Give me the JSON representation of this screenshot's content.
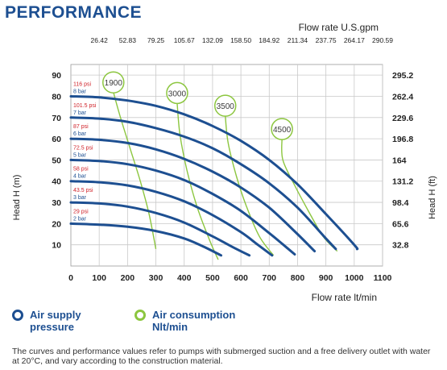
{
  "heading": "PERFORMANCE",
  "chart_data": {
    "type": "line",
    "top_axis_title": "Flow rate U.S.gpm",
    "top_ticks": [
      "26.42",
      "52.83",
      "79.25",
      "105.67",
      "132.09",
      "158.50",
      "184.92",
      "211.34",
      "237.75",
      "264.17",
      "290.59"
    ],
    "x_axis_title": "Flow rate  lt/min",
    "x_ticks": [
      "0",
      "100",
      "200",
      "300",
      "400",
      "500",
      "600",
      "700",
      "800",
      "900",
      "1000",
      "1100"
    ],
    "xlim": [
      0,
      1100
    ],
    "y_left_title": "Head H (m)",
    "y_left_ticks": [
      "10",
      "20",
      "30",
      "40",
      "50",
      "60",
      "70",
      "80",
      "90"
    ],
    "ylim": [
      0,
      95
    ],
    "y_right_title": "Head H (ft)",
    "y_right_ticks": [
      "32.8",
      "65.6",
      "98.4",
      "131.2",
      "164",
      "196.8",
      "229.6",
      "262.4",
      "295.2"
    ],
    "grid": true,
    "pressure_series": [
      {
        "psi": "29 psi",
        "bar": "2 bar",
        "points": [
          [
            0,
            20
          ],
          [
            100,
            19.5
          ],
          [
            200,
            18.5
          ],
          [
            300,
            16.5
          ],
          [
            400,
            13
          ],
          [
            470,
            9
          ],
          [
            530,
            5
          ]
        ]
      },
      {
        "psi": "43.5 psi",
        "bar": "3 bar",
        "points": [
          [
            0,
            30
          ],
          [
            100,
            29.5
          ],
          [
            200,
            28
          ],
          [
            300,
            25
          ],
          [
            400,
            20.5
          ],
          [
            500,
            14
          ],
          [
            570,
            9
          ],
          [
            630,
            5
          ]
        ]
      },
      {
        "psi": "58 psi",
        "bar": "4 bar",
        "points": [
          [
            0,
            40
          ],
          [
            100,
            39.5
          ],
          [
            200,
            38
          ],
          [
            300,
            35
          ],
          [
            400,
            30.5
          ],
          [
            500,
            24
          ],
          [
            600,
            16
          ],
          [
            660,
            10
          ],
          [
            710,
            5
          ]
        ]
      },
      {
        "psi": "72.5 psi",
        "bar": "5 bar",
        "points": [
          [
            0,
            50
          ],
          [
            100,
            49.5
          ],
          [
            200,
            48
          ],
          [
            300,
            45
          ],
          [
            400,
            40.5
          ],
          [
            500,
            34
          ],
          [
            600,
            26
          ],
          [
            700,
            15.5
          ],
          [
            750,
            10
          ],
          [
            790,
            5.5
          ]
        ]
      },
      {
        "psi": "87 psi",
        "bar": "6 bar",
        "points": [
          [
            0,
            60
          ],
          [
            100,
            59.5
          ],
          [
            200,
            58
          ],
          [
            300,
            55
          ],
          [
            400,
            50.5
          ],
          [
            500,
            44.5
          ],
          [
            600,
            37
          ],
          [
            700,
            27.5
          ],
          [
            800,
            15
          ],
          [
            860,
            7
          ]
        ]
      },
      {
        "psi": "101.5 psi",
        "bar": "7 bar",
        "points": [
          [
            0,
            70
          ],
          [
            100,
            69.5
          ],
          [
            200,
            68
          ],
          [
            300,
            65
          ],
          [
            400,
            61
          ],
          [
            500,
            55.5
          ],
          [
            600,
            48
          ],
          [
            700,
            39
          ],
          [
            800,
            27.5
          ],
          [
            900,
            13
          ],
          [
            935,
            8
          ]
        ]
      },
      {
        "psi": "116 psi",
        "bar": "8 bar",
        "points": [
          [
            0,
            80
          ],
          [
            100,
            79.5
          ],
          [
            200,
            78
          ],
          [
            300,
            75.5
          ],
          [
            400,
            71.5
          ],
          [
            500,
            66
          ],
          [
            600,
            59
          ],
          [
            700,
            50
          ],
          [
            800,
            38.5
          ],
          [
            900,
            24.5
          ],
          [
            1000,
            10
          ],
          [
            1010,
            8
          ]
        ]
      }
    ],
    "consumption_series": [
      {
        "label": "1900",
        "points": [
          [
            150,
            82
          ],
          [
            175,
            70
          ],
          [
            210,
            55
          ],
          [
            245,
            40
          ],
          [
            275,
            25
          ],
          [
            300,
            8
          ]
        ]
      },
      {
        "label": "3000",
        "points": [
          [
            375,
            77
          ],
          [
            385,
            62
          ],
          [
            410,
            45
          ],
          [
            445,
            28
          ],
          [
            490,
            12
          ],
          [
            520,
            3
          ]
        ]
      },
      {
        "label": "3500",
        "points": [
          [
            545,
            71
          ],
          [
            555,
            58
          ],
          [
            585,
            42
          ],
          [
            620,
            28
          ],
          [
            665,
            14
          ],
          [
            715,
            5
          ]
        ]
      },
      {
        "label": "4500",
        "points": [
          [
            745,
            60
          ],
          [
            748,
            50
          ],
          [
            790,
            38
          ],
          [
            838,
            26
          ],
          [
            890,
            14
          ],
          [
            940,
            7
          ]
        ]
      }
    ]
  },
  "legend": {
    "air_supply": "Air supply\npressure",
    "air_consumption": "Air consumption\nNlt/min"
  },
  "note": "The curves and performance values refer to pumps with submerged suction and a free delivery outlet with water at 20°C, and vary according to the construction material.",
  "colors": {
    "pressure": "#1d4f91",
    "consumption": "#8cc63f",
    "psi_text": "#d0232a",
    "grid": "#c9c9c9"
  }
}
